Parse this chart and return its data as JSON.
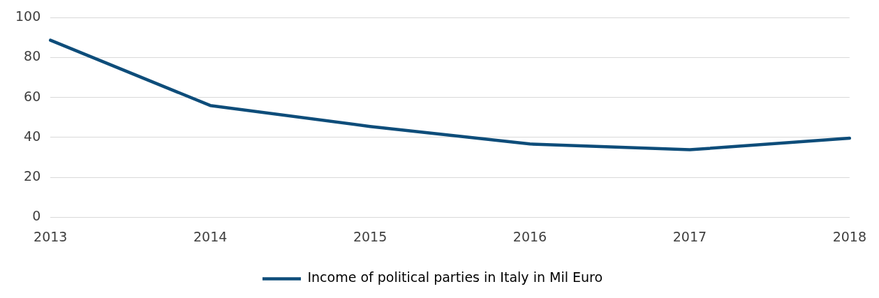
{
  "chart_data": {
    "type": "line",
    "categories": [
      "2013",
      "2014",
      "2015",
      "2016",
      "2017",
      "2018"
    ],
    "series": [
      {
        "name": "Income of political parties in Italy in Mil Euro",
        "color": "#0e4d7a",
        "values": [
          88.7,
          56,
          45.5,
          36.7,
          33.8,
          39.6
        ]
      }
    ],
    "ylim": [
      0,
      100
    ],
    "yticks": [
      0,
      20,
      40,
      60,
      80,
      100
    ],
    "grid": "y",
    "legend": "bottom",
    "marker": "none",
    "line_style": "solid"
  }
}
